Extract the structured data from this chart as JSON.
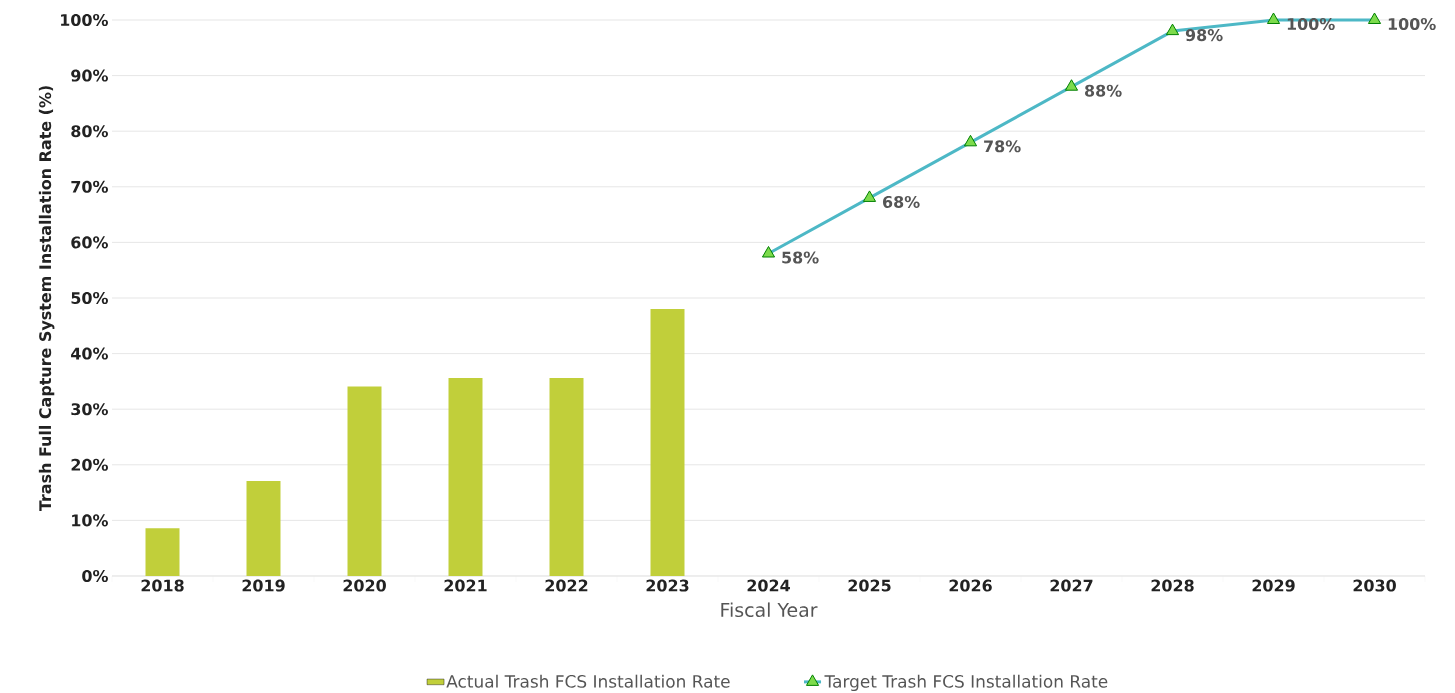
{
  "chart_data": {
    "type": "bar",
    "xlabel": "Fiscal Year",
    "ylabel": "Trash Full Capture System Installation Rate (%)",
    "categories": [
      "2018",
      "2019",
      "2020",
      "2021",
      "2022",
      "2023",
      "2024",
      "2025",
      "2026",
      "2027",
      "2028",
      "2029",
      "2030"
    ],
    "series": [
      {
        "name": "Actual Trash FCS Installation Rate",
        "color": "#c1cf3a",
        "values": [
          8.6,
          17.1,
          34.1,
          35.6,
          35.6,
          48.0,
          null,
          null,
          null,
          null,
          null,
          null,
          null
        ]
      },
      {
        "name": "Target Trash FCS  Installation Rate",
        "type": "line",
        "color": "#4db8c6",
        "marker": "triangle",
        "values": [
          null,
          null,
          null,
          null,
          null,
          null,
          58,
          68,
          78,
          88,
          98,
          100,
          100
        ],
        "value_labels": [
          null,
          null,
          null,
          null,
          null,
          null,
          "58%",
          "68%",
          "78%",
          "88%",
          "98%",
          "100%",
          "100%"
        ]
      }
    ],
    "ylim": [
      0,
      100
    ],
    "yticks": [
      {
        "value": 0,
        "label": "0%"
      },
      {
        "value": 10,
        "label": "10%"
      },
      {
        "value": 20,
        "label": "20%"
      },
      {
        "value": 30,
        "label": "30%"
      },
      {
        "value": 40,
        "label": "40%"
      },
      {
        "value": 50,
        "label": "50%"
      },
      {
        "value": 60,
        "label": "60%"
      },
      {
        "value": 70,
        "label": "70%"
      },
      {
        "value": 80,
        "label": "80%"
      },
      {
        "value": 90,
        "label": "90%"
      },
      {
        "value": 100,
        "label": "100%"
      }
    ],
    "grid": "y",
    "legend": "bottom"
  }
}
